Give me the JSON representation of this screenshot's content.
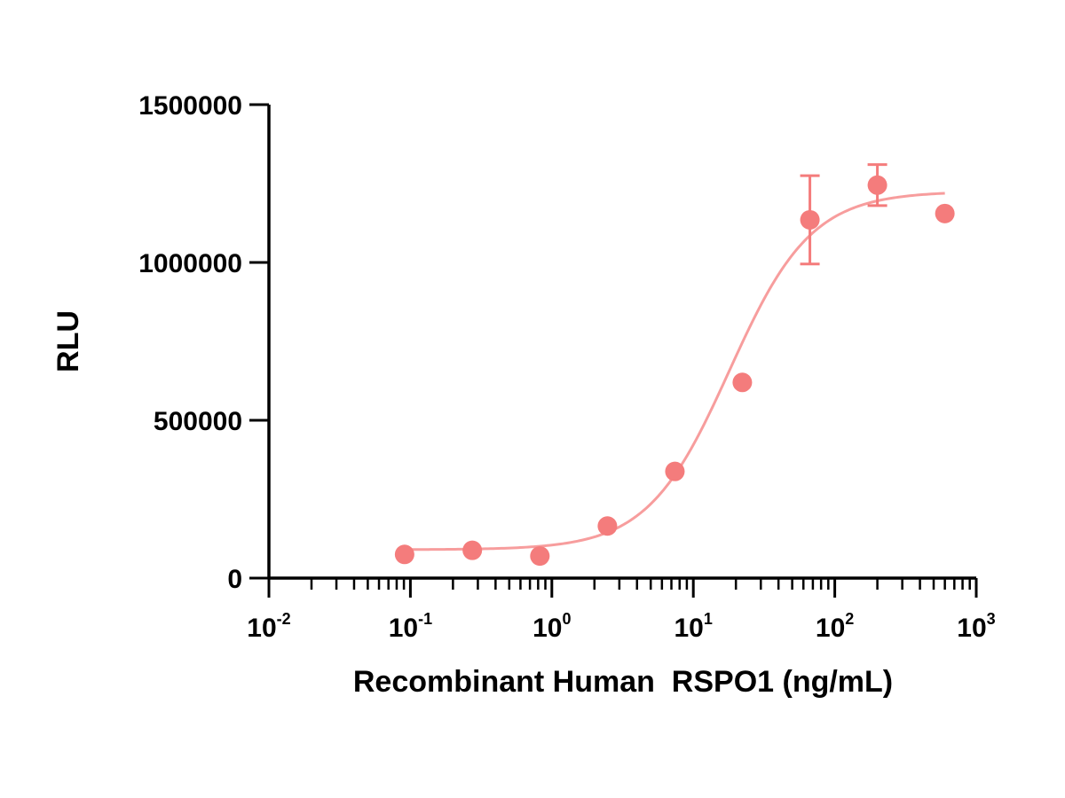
{
  "chart_data": {
    "type": "scatter",
    "title": "",
    "xlabel": "Recombinant Human  RSPO1 (ng/mL)",
    "ylabel": "RLU",
    "x_scale": "log10",
    "xlim": [
      0.01,
      1000
    ],
    "ylim": [
      0,
      1500000
    ],
    "x_tick_labels": [
      {
        "base": "10",
        "exp": "-2"
      },
      {
        "base": "10",
        "exp": "-1"
      },
      {
        "base": "10",
        "exp": "0"
      },
      {
        "base": "10",
        "exp": "1"
      },
      {
        "base": "10",
        "exp": "2"
      },
      {
        "base": "10",
        "exp": "3"
      }
    ],
    "x_tick_values": [
      0.01,
      0.1,
      1,
      10,
      100,
      1000
    ],
    "y_ticks": [
      "0",
      "500000",
      "1000000",
      "1500000"
    ],
    "y_tick_values": [
      0,
      500000,
      1000000,
      1500000
    ],
    "grid": false,
    "color": "#f47c7c",
    "series": [
      {
        "points": [
          {
            "x": 0.091,
            "y": 75000
          },
          {
            "x": 0.274,
            "y": 88000
          },
          {
            "x": 0.823,
            "y": 70000
          },
          {
            "x": 2.47,
            "y": 165000
          },
          {
            "x": 7.41,
            "y": 338000
          },
          {
            "x": 22.2,
            "y": 620000
          },
          {
            "x": 66.7,
            "y": 1135000,
            "err": 140000
          },
          {
            "x": 200,
            "y": 1245000,
            "err": 65000
          },
          {
            "x": 600,
            "y": 1155000
          }
        ],
        "fit": {
          "bottom": 90000,
          "top": 1225000,
          "ec50": 18,
          "hill": 1.5,
          "x_range": [
            0.09,
            600
          ]
        }
      }
    ]
  }
}
